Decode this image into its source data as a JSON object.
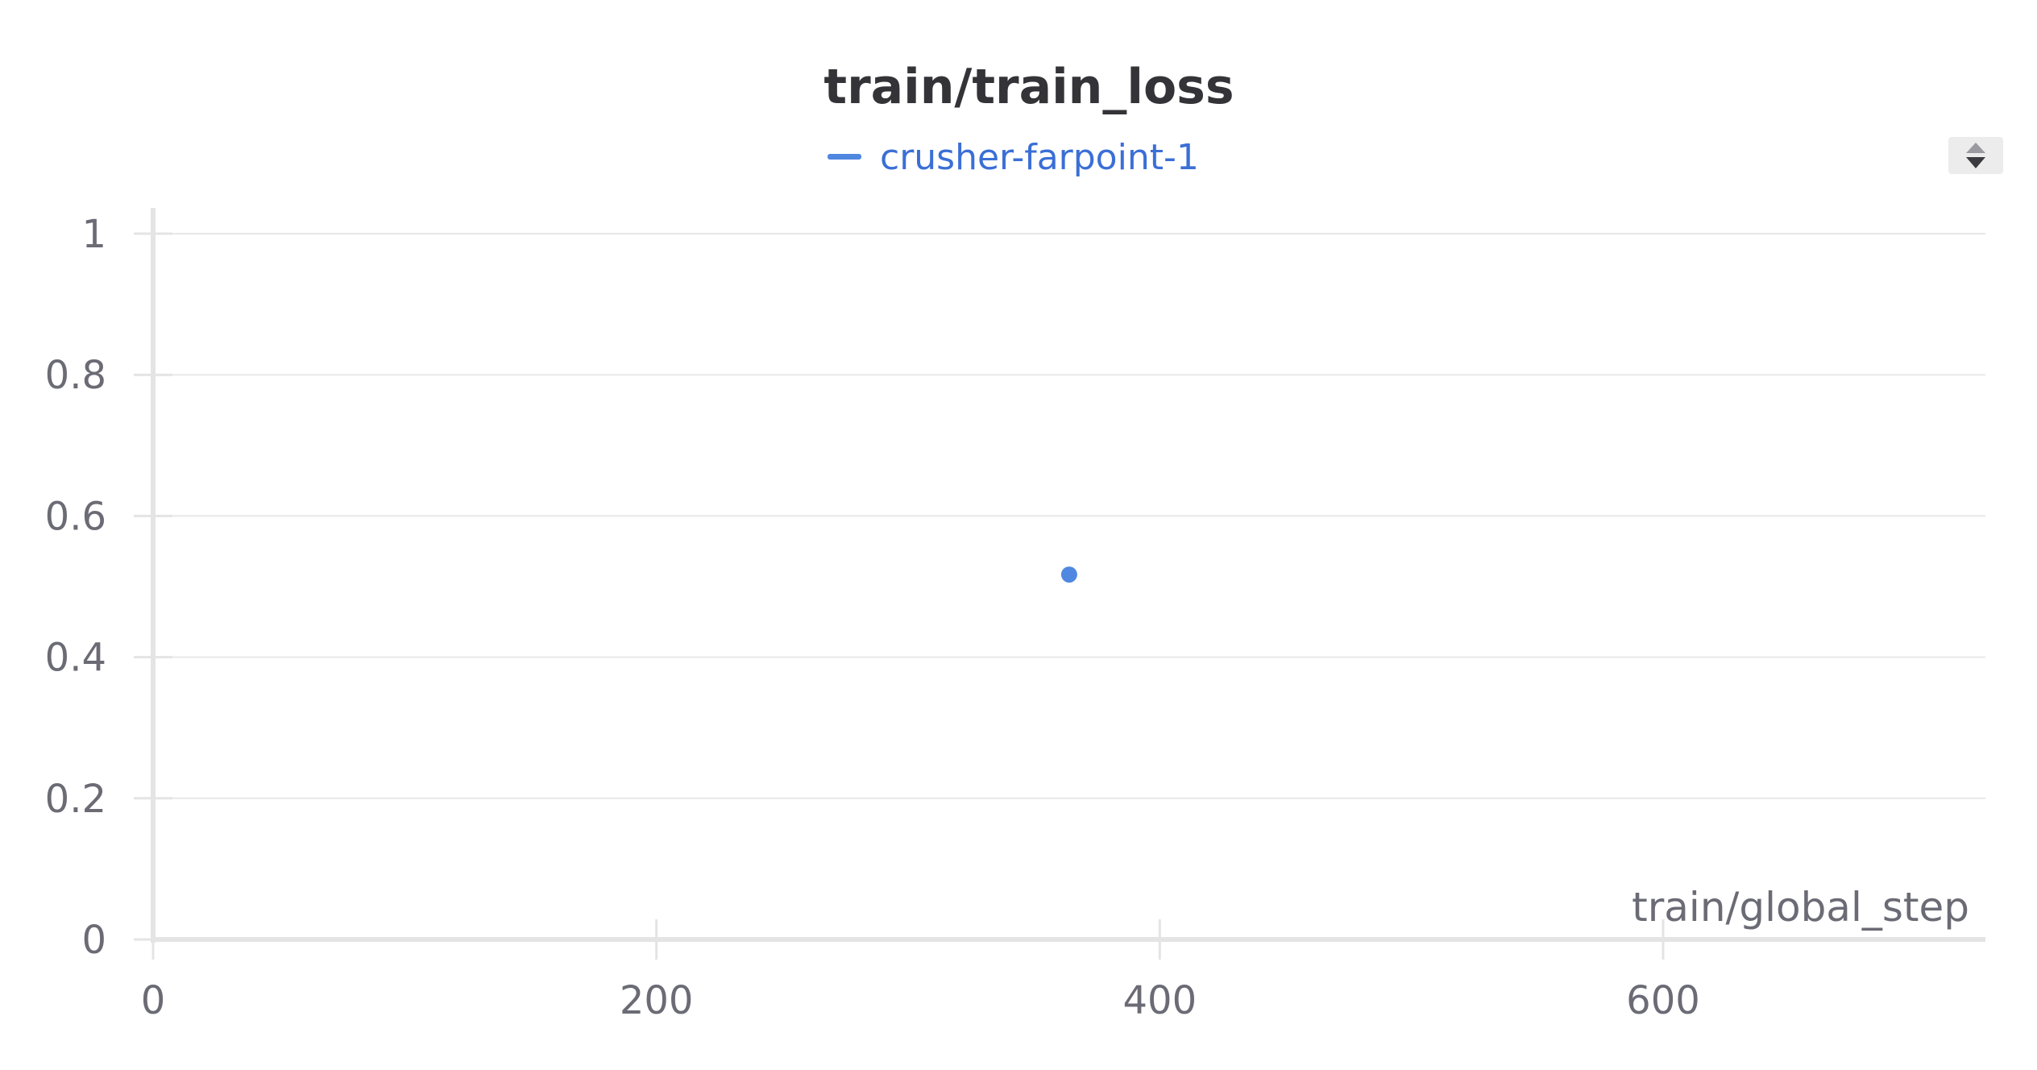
{
  "chart_data": {
    "type": "scatter",
    "title": "train/train_loss",
    "xlabel": "train/global_step",
    "ylabel": "",
    "xlim": [
      0,
      730
    ],
    "ylim": [
      0,
      1
    ],
    "xticks": [
      0,
      200,
      400,
      600
    ],
    "yticks": [
      0,
      0.2,
      0.4,
      0.6,
      0.8,
      1
    ],
    "x_tick_labels": [
      "0",
      "200",
      "400",
      "600"
    ],
    "y_tick_labels": [
      "0",
      "0.2",
      "0.4",
      "0.6",
      "0.8",
      "1"
    ],
    "grid": "horizontal",
    "legend_position": "top-center",
    "series": [
      {
        "name": "crusher-farpoint-1",
        "color": "#5087e0",
        "points": [
          {
            "x": 364,
            "y": 0.517
          }
        ]
      }
    ]
  },
  "legend": {
    "scroll_icon": "sort-arrows-icon"
  }
}
